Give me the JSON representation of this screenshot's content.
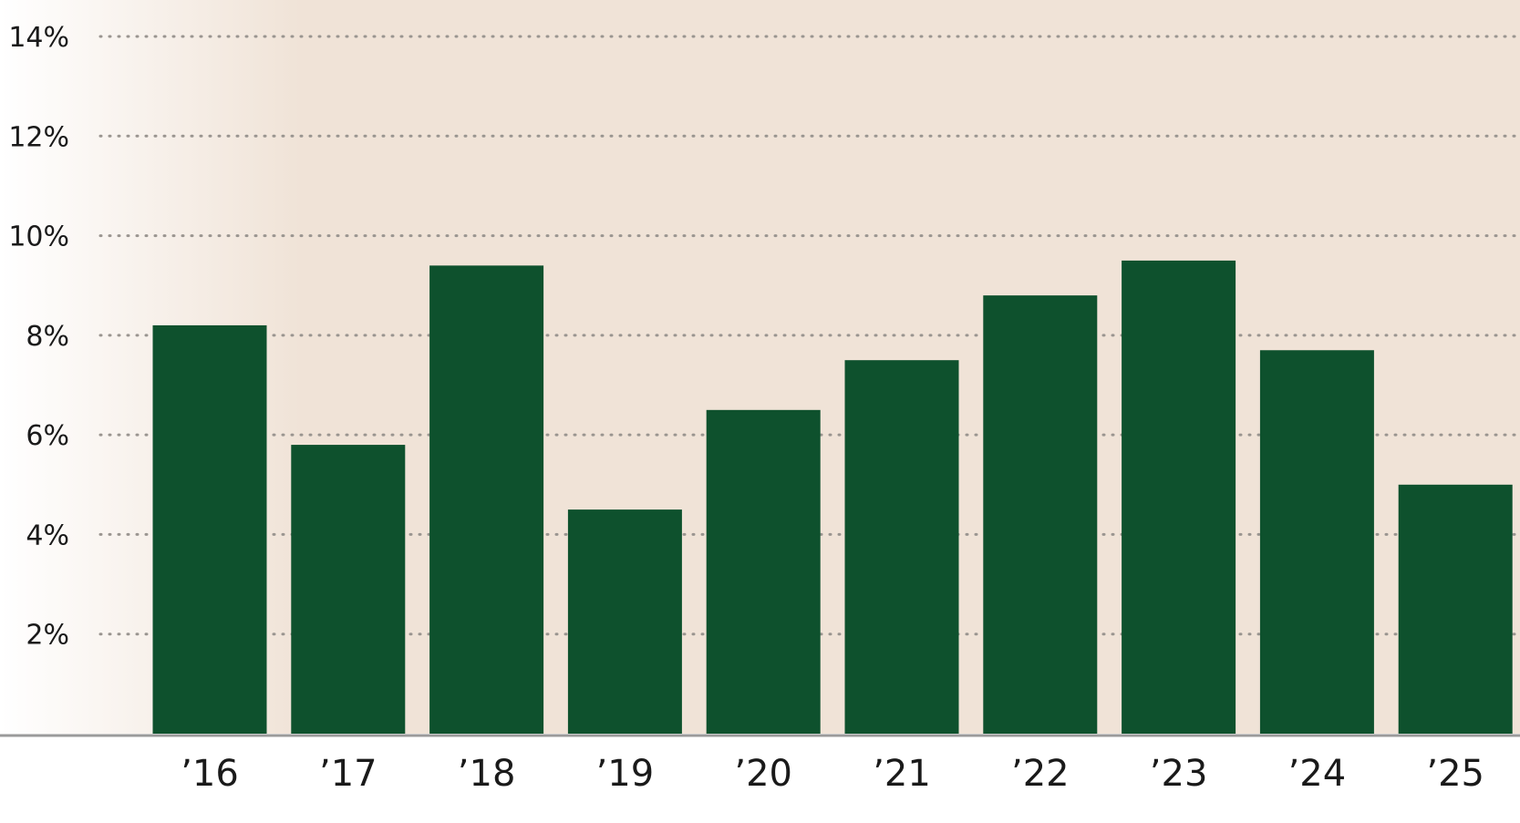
{
  "colors": {
    "plot_background": "#f0e3d7",
    "bar": "#0e512d",
    "gridline": "#9a9590",
    "axis": "#9a9a9a",
    "text": "#1a1a1a"
  },
  "chart_data": {
    "type": "bar",
    "title": "",
    "xlabel": "",
    "ylabel": "",
    "categories": [
      "’16",
      "’17",
      "’18",
      "’19",
      "’20",
      "’21",
      "’22",
      "’23",
      "’24",
      "’25"
    ],
    "values": [
      8.2,
      5.8,
      9.4,
      4.5,
      6.5,
      7.5,
      8.8,
      9.5,
      7.7,
      5.0
    ],
    "ylim": [
      0,
      14
    ],
    "yticks": [
      2,
      4,
      6,
      8,
      10,
      12,
      14
    ],
    "ytick_labels": [
      "2%",
      "4%",
      "6%",
      "8%",
      "10%",
      "12%",
      "14%"
    ],
    "grid": "dotted horizontal",
    "legend": "none"
  }
}
